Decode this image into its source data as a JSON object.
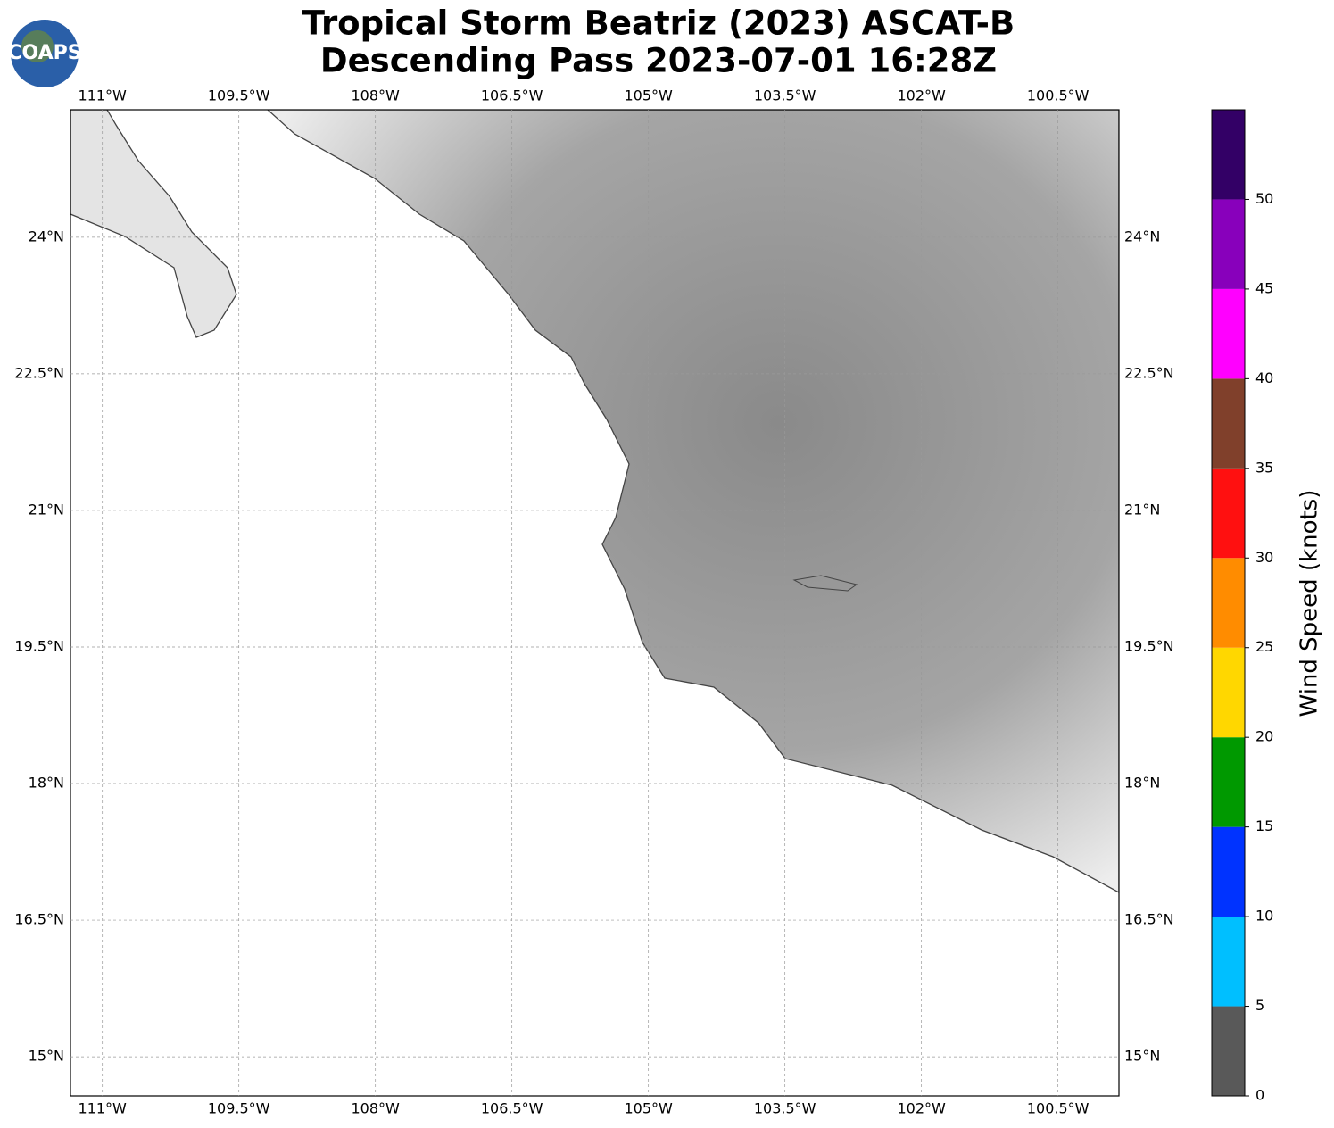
{
  "logo": "COAPS",
  "title": [
    "Tropical Storm Beatriz (2023) ASCAT-B",
    "Descending Pass 2023-07-01 16:28Z"
  ],
  "map": {
    "lonlim": [
      -111.35,
      -99.83
    ],
    "latlim": [
      14.57,
      25.4
    ],
    "lonticks": [
      {
        "value": -111,
        "label": "111°W"
      },
      {
        "value": -109.5,
        "label": "109.5°W"
      },
      {
        "value": -108,
        "label": "108°W"
      },
      {
        "value": -106.5,
        "label": "106.5°W"
      },
      {
        "value": -105,
        "label": "105°W"
      },
      {
        "value": -103.5,
        "label": "103.5°W"
      },
      {
        "value": -102,
        "label": "102°W"
      },
      {
        "value": -100.5,
        "label": "100.5°W"
      }
    ],
    "latticks": [
      {
        "value": 24,
        "label": "24°N"
      },
      {
        "value": 22.5,
        "label": "22.5°N"
      },
      {
        "value": 21,
        "label": "21°N"
      },
      {
        "value": 19.5,
        "label": "19.5°N"
      },
      {
        "value": 18,
        "label": "18°N"
      },
      {
        "value": 16.5,
        "label": "16.5°N"
      },
      {
        "value": 15,
        "label": "15°N"
      }
    ],
    "grid": true
  },
  "colorbar": {
    "label": "Wind Speed (knots)",
    "levels": [
      0,
      5,
      10,
      15,
      20,
      25,
      30,
      35,
      40,
      45,
      50,
      55
    ],
    "colors": [
      "#595959",
      "#00bfff",
      "#0033ff",
      "#009900",
      "#ffd700",
      "#ff8c00",
      "#ff1010",
      "#80402b",
      "#ff00ff",
      "#8800bb",
      "#330066"
    ],
    "ticks": [
      0,
      5,
      10,
      15,
      20,
      25,
      30,
      35,
      40,
      45,
      50
    ]
  }
}
